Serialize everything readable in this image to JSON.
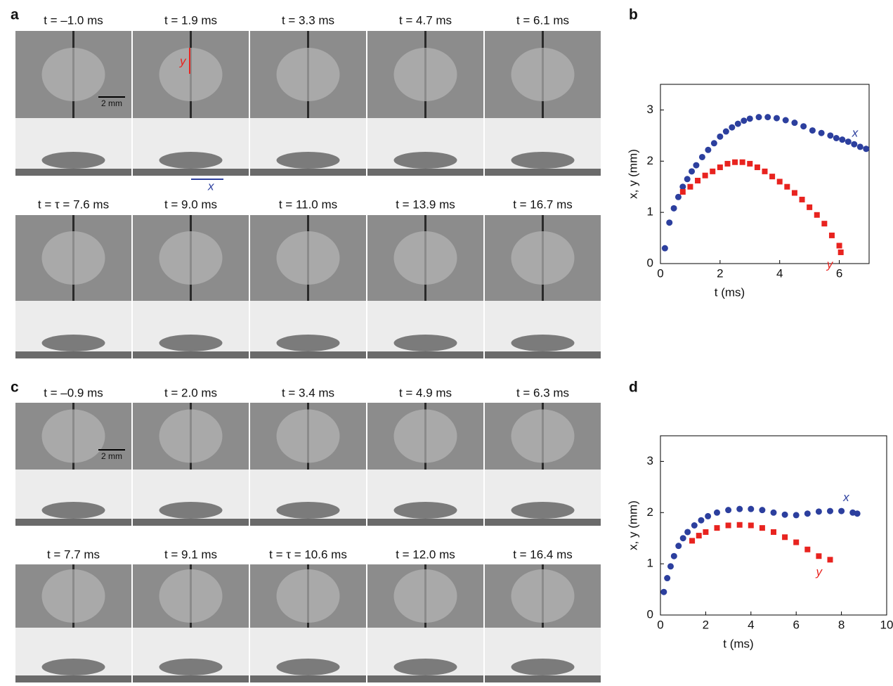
{
  "image_panels": [
    {
      "label": "a",
      "scale_bar": "2 mm",
      "arrow_labels": [
        "y",
        "x"
      ],
      "rows": [
        {
          "times": [
            "t = –1.0 ms",
            "t = 1.9 ms",
            "t = 3.3 ms",
            "t = 4.7 ms",
            "t = 6.1 ms"
          ]
        },
        {
          "times": [
            "t = τ = 7.6 ms",
            "t = 9.0 ms",
            "t = 11.0 ms",
            "t = 13.9 ms",
            "t = 16.7 ms"
          ]
        }
      ]
    },
    {
      "label": "c",
      "scale_bar": "2 mm",
      "rows": [
        {
          "times": [
            "t = –0.9 ms",
            "t = 2.0 ms",
            "t = 3.4 ms",
            "t = 4.9 ms",
            "t = 6.3 ms"
          ]
        },
        {
          "times": [
            "t = 7.7 ms",
            "t = 9.1 ms",
            "t = τ = 10.6 ms",
            "t = 12.0 ms",
            "t = 16.4 ms"
          ]
        }
      ]
    }
  ],
  "chart_data": [
    {
      "type": "scatter",
      "label": "b",
      "x_label": "t (ms)",
      "y_label": "x, y (mm)",
      "xlim": [
        0,
        7
      ],
      "xticks": [
        0,
        2,
        4,
        6
      ],
      "ylim": [
        0,
        3.5
      ],
      "yticks": [
        0,
        1,
        2,
        3
      ],
      "series": [
        {
          "name": "x",
          "color": "#2c3f9e",
          "marker": "circle",
          "x": [
            0.15,
            0.3,
            0.45,
            0.6,
            0.75,
            0.9,
            1.05,
            1.2,
            1.4,
            1.6,
            1.8,
            2.0,
            2.2,
            2.4,
            2.6,
            2.8,
            3.0,
            3.3,
            3.6,
            3.9,
            4.2,
            4.5,
            4.8,
            5.1,
            5.4,
            5.7,
            5.9,
            6.1,
            6.3,
            6.5,
            6.7,
            6.9
          ],
          "values": [
            0.3,
            0.8,
            1.08,
            1.3,
            1.5,
            1.65,
            1.8,
            1.92,
            2.08,
            2.22,
            2.35,
            2.48,
            2.58,
            2.66,
            2.73,
            2.79,
            2.83,
            2.86,
            2.86,
            2.84,
            2.8,
            2.75,
            2.68,
            2.6,
            2.55,
            2.5,
            2.45,
            2.42,
            2.38,
            2.33,
            2.28,
            2.24
          ]
        },
        {
          "name": "y",
          "color": "#e8231f",
          "marker": "square",
          "x": [
            0.75,
            1.0,
            1.25,
            1.5,
            1.75,
            2.0,
            2.25,
            2.5,
            2.75,
            3.0,
            3.25,
            3.5,
            3.75,
            4.0,
            4.25,
            4.5,
            4.75,
            5.0,
            5.25,
            5.5,
            5.75,
            6.0,
            6.05
          ],
          "values": [
            1.4,
            1.5,
            1.62,
            1.72,
            1.8,
            1.88,
            1.95,
            1.98,
            1.98,
            1.95,
            1.88,
            1.8,
            1.7,
            1.6,
            1.5,
            1.38,
            1.25,
            1.1,
            0.95,
            0.78,
            0.55,
            0.35,
            0.22
          ]
        }
      ]
    },
    {
      "type": "scatter",
      "label": "d",
      "x_label": "t (ms)",
      "y_label": "x, y (mm)",
      "xlim": [
        0,
        10
      ],
      "xticks": [
        0,
        2,
        4,
        6,
        8,
        10
      ],
      "ylim": [
        0,
        3.5
      ],
      "yticks": [
        0,
        1,
        2,
        3
      ],
      "series": [
        {
          "name": "x",
          "color": "#2c3f9e",
          "marker": "circle",
          "x": [
            0.15,
            0.3,
            0.45,
            0.6,
            0.8,
            1.0,
            1.2,
            1.5,
            1.8,
            2.1,
            2.5,
            3.0,
            3.5,
            4.0,
            4.5,
            5.0,
            5.5,
            6.0,
            6.5,
            7.0,
            7.5,
            8.0,
            8.5,
            8.7
          ],
          "values": [
            0.45,
            0.72,
            0.95,
            1.15,
            1.35,
            1.5,
            1.62,
            1.75,
            1.85,
            1.93,
            2.0,
            2.05,
            2.07,
            2.07,
            2.05,
            2.0,
            1.96,
            1.95,
            1.98,
            2.02,
            2.03,
            2.03,
            2.0,
            1.98
          ]
        },
        {
          "name": "y",
          "color": "#e8231f",
          "marker": "square",
          "x": [
            1.4,
            1.7,
            2.0,
            2.5,
            3.0,
            3.5,
            4.0,
            4.5,
            5.0,
            5.5,
            6.0,
            6.5,
            7.0,
            7.5
          ],
          "values": [
            1.45,
            1.55,
            1.62,
            1.7,
            1.75,
            1.76,
            1.75,
            1.7,
            1.62,
            1.52,
            1.42,
            1.28,
            1.15,
            1.08
          ]
        }
      ]
    }
  ]
}
